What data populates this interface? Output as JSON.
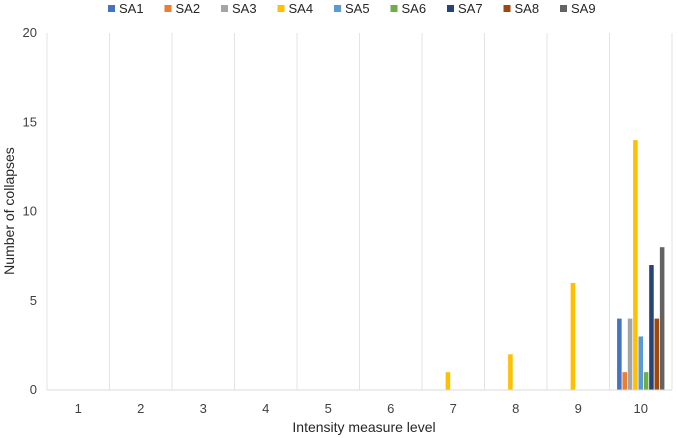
{
  "chart_data": {
    "type": "bar",
    "title": "",
    "xlabel": "Intensity measure level",
    "ylabel": "Number of collapses",
    "categories": [
      "1",
      "2",
      "3",
      "4",
      "5",
      "6",
      "7",
      "8",
      "9",
      "10"
    ],
    "ylim": [
      0,
      20
    ],
    "yticks": [
      "0",
      "5",
      "10",
      "15",
      "20"
    ],
    "grid": "vertical",
    "legend_position": "top",
    "series": [
      {
        "name": "SA1",
        "color": "#4472C4",
        "values": [
          0,
          0,
          0,
          0,
          0,
          0,
          0,
          0,
          0,
          4
        ]
      },
      {
        "name": "SA2",
        "color": "#ED7D31",
        "values": [
          0,
          0,
          0,
          0,
          0,
          0,
          0,
          0,
          0,
          1
        ]
      },
      {
        "name": "SA3",
        "color": "#A5A5A5",
        "values": [
          0,
          0,
          0,
          0,
          0,
          0,
          0,
          0,
          0,
          4
        ]
      },
      {
        "name": "SA4",
        "color": "#FFC000",
        "values": [
          0,
          0,
          0,
          0,
          0,
          0,
          1,
          2,
          6,
          14
        ]
      },
      {
        "name": "SA5",
        "color": "#5B9BD5",
        "values": [
          0,
          0,
          0,
          0,
          0,
          0,
          0,
          0,
          0,
          3
        ]
      },
      {
        "name": "SA6",
        "color": "#70AD47",
        "values": [
          0,
          0,
          0,
          0,
          0,
          0,
          0,
          0,
          0,
          1
        ]
      },
      {
        "name": "SA7",
        "color": "#264478",
        "values": [
          0,
          0,
          0,
          0,
          0,
          0,
          0,
          0,
          0,
          7
        ]
      },
      {
        "name": "SA8",
        "color": "#9E480E",
        "values": [
          0,
          0,
          0,
          0,
          0,
          0,
          0,
          0,
          0,
          4
        ]
      },
      {
        "name": "SA9",
        "color": "#636363",
        "values": [
          0,
          0,
          0,
          0,
          0,
          0,
          0,
          0,
          0,
          8
        ]
      }
    ]
  }
}
